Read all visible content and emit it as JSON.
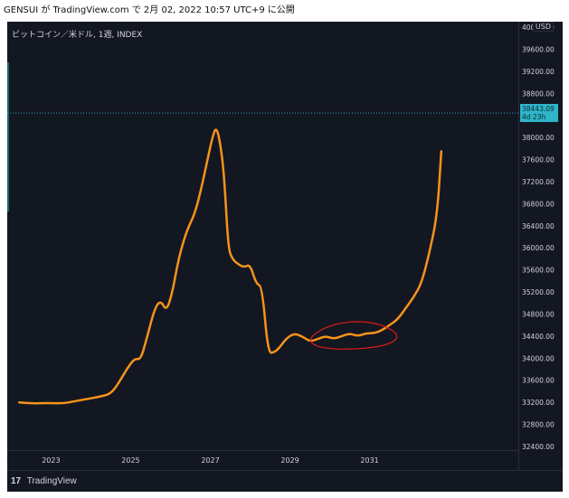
{
  "header": {
    "text": "GENSUI が TradingView.com で 2月 02, 2022 10:57 UTC+9 に公開"
  },
  "chart_header": {
    "symbol": "ビットコイン／米ドル, 1週, INDEX",
    "currency": "USD"
  },
  "current_price": {
    "value": "38443.09",
    "countdown": "4d 23h"
  },
  "footer": {
    "brand_logo": "17",
    "brand": "TradingView"
  },
  "colors": {
    "background": "#131722",
    "line": "#f7931a",
    "annotation": "#e01b1b",
    "price_tag": "#2fb4c8",
    "axis_text": "#d1d4dc"
  },
  "chart_data": {
    "type": "line",
    "title": "",
    "xlabel": "",
    "ylabel": "",
    "x_ticks": [
      "2023",
      "2025",
      "2027",
      "2029",
      "2031"
    ],
    "y_ticks": [
      32400,
      32800,
      33200,
      33600,
      34000,
      34400,
      34800,
      35200,
      35600,
      36000,
      36400,
      36800,
      37200,
      37600,
      38000,
      38400,
      38800,
      39200,
      39600,
      40000
    ],
    "y_tick_labels": [
      "32400.00",
      "32800.00",
      "33200.00",
      "33600.00",
      "34000.00",
      "34400.00",
      "34800.00",
      "35200.00",
      "35600.00",
      "36000.00",
      "36400.00",
      "36800.00",
      "37200.00",
      "37600.00",
      "38000.00",
      "38400.00",
      "38800.00",
      "39200.00",
      "39600.00",
      "40000.00"
    ],
    "ylim": [
      32400,
      40000
    ],
    "xlim": [
      2022.2,
      2033.5
    ],
    "grid": false,
    "series": [
      {
        "x": [
          2022.2,
          2022.5,
          2022.9,
          2023.3,
          2023.6,
          2023.9,
          2024.2,
          2024.5,
          2024.7,
          2024.9,
          2025.1,
          2025.25,
          2025.4,
          2025.6,
          2025.75,
          2025.9,
          2026.05,
          2026.2,
          2026.4,
          2026.6,
          2026.75,
          2026.9,
          2027.05,
          2027.15,
          2027.25,
          2027.35,
          2027.45,
          2027.55,
          2027.7,
          2027.85,
          2028.0,
          2028.15,
          2028.3,
          2028.45,
          2028.6,
          2028.75,
          2028.9,
          2029.1,
          2029.3,
          2029.5,
          2029.7,
          2029.9,
          2030.1,
          2030.3,
          2030.5,
          2030.7,
          2030.9,
          2031.1,
          2031.3,
          2031.5,
          2031.7,
          2031.9,
          2032.1,
          2032.3,
          2032.5,
          2032.7,
          2032.8
        ],
        "y": [
          33200,
          33180,
          33190,
          33180,
          33220,
          33260,
          33300,
          33350,
          33550,
          33800,
          34000,
          33970,
          34350,
          34900,
          35050,
          34850,
          35200,
          35800,
          36300,
          36600,
          37000,
          37500,
          38000,
          38200,
          37900,
          37300,
          36000,
          35800,
          35700,
          35650,
          35700,
          35350,
          35300,
          34100,
          34100,
          34200,
          34350,
          34450,
          34400,
          34300,
          34350,
          34400,
          34350,
          34400,
          34450,
          34400,
          34450,
          34450,
          34500,
          34600,
          34700,
          34900,
          35100,
          35350,
          35900,
          36600,
          37750
        ]
      }
    ],
    "annotations": [
      {
        "type": "freehand-ellipse",
        "center": [
          2030.6,
          34400
        ],
        "note": ""
      }
    ]
  }
}
